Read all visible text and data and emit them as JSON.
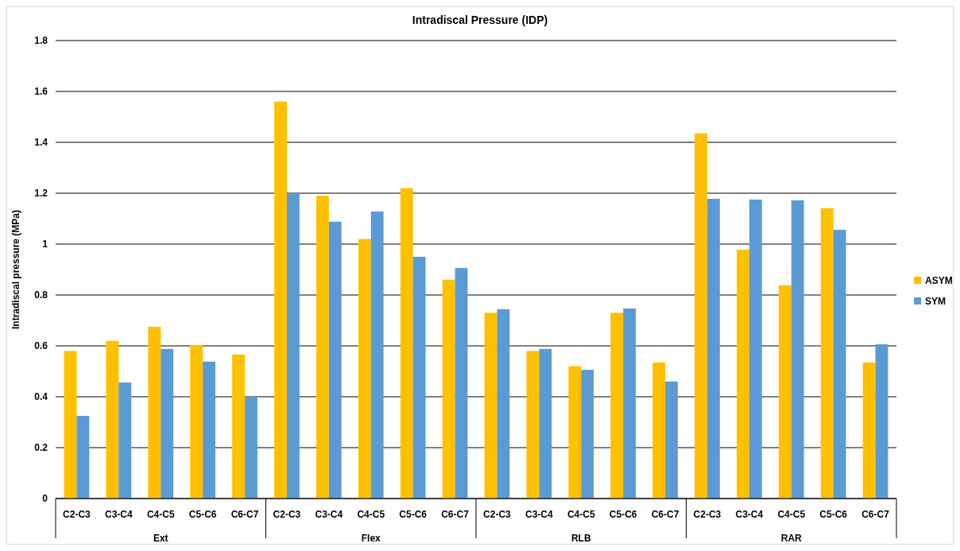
{
  "chart_data": {
    "type": "bar",
    "title": "Intradiscal Pressure (IDP)",
    "ylabel": "Intradiscal pressure (MPa)",
    "categories": [
      "C2-C3",
      "C3-C4",
      "C4-C5",
      "C5-C6",
      "C6-C7",
      "C2-C3",
      "C3-C4",
      "C4-C5",
      "C5-C6",
      "C6-C7",
      "C2-C3",
      "C3-C4",
      "C4-C5",
      "C5-C6",
      "C6-C7",
      "C2-C3",
      "C3-C4",
      "C4-C5",
      "C5-C6",
      "C6-C7"
    ],
    "annotations": [
      "Ext",
      "Flex",
      "RLB",
      "RAR"
    ],
    "series": [
      {
        "name": "ASYM",
        "color": "#ffc000",
        "values": [
          0.58,
          0.62,
          0.675,
          0.603,
          0.566,
          1.56,
          1.19,
          1.02,
          1.22,
          0.86,
          0.73,
          0.58,
          0.52,
          0.73,
          0.535,
          1.435,
          0.978,
          0.838,
          1.141,
          0.535
        ]
      },
      {
        "name": "SYM",
        "color": "#5b9bd5",
        "values": [
          0.325,
          0.456,
          0.588,
          0.538,
          0.4,
          1.2,
          1.088,
          1.128,
          0.95,
          0.906,
          0.744,
          0.588,
          0.506,
          0.747,
          0.46,
          1.178,
          1.175,
          1.172,
          1.056,
          0.606
        ]
      }
    ],
    "ylim": [
      0,
      1.8
    ],
    "yticks": [
      0,
      0.2,
      0.4,
      0.6,
      0.8,
      1,
      1.2,
      1.4,
      1.6,
      1.8
    ],
    "grid": "y",
    "legend": "right"
  }
}
